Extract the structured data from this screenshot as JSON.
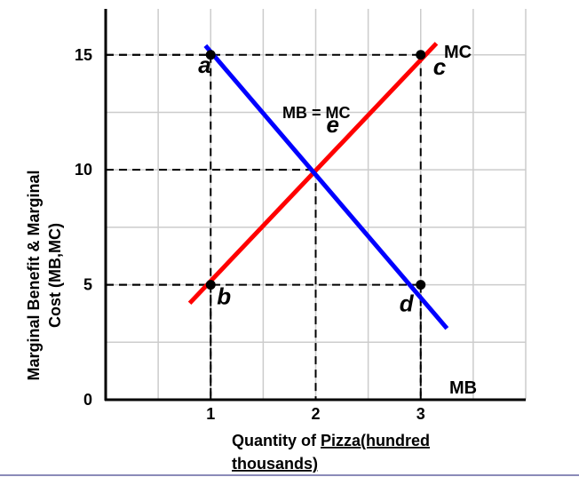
{
  "chart_data": {
    "type": "line",
    "title": "",
    "xlabel_line1_prefix": "Quantity of ",
    "xlabel_line1_underlined": "Pizza(hundred",
    "xlabel_line2": "thousands)",
    "ylabel_line1": "Marginal Benefit & Marginal",
    "ylabel_line2": "Cost (MB,MC)",
    "xlim": [
      0,
      4
    ],
    "ylim": [
      0,
      17
    ],
    "grid": true,
    "x_ticks": [
      {
        "value": 1,
        "label": "1"
      },
      {
        "value": 2,
        "label": "2"
      },
      {
        "value": 3,
        "label": "3"
      }
    ],
    "y_ticks": [
      {
        "value": 0,
        "label": "0"
      },
      {
        "value": 5,
        "label": "5"
      },
      {
        "value": 10,
        "label": "10"
      },
      {
        "value": 15,
        "label": "15"
      }
    ],
    "series": [
      {
        "name": "MC",
        "color": "#ff0000",
        "x": [
          0.8,
          3.15
        ],
        "y": [
          4.2,
          15.5
        ]
      },
      {
        "name": "MB",
        "color": "#0000ff",
        "x": [
          0.95,
          3.25
        ],
        "y": [
          15.4,
          3.1
        ]
      }
    ],
    "points": [
      {
        "label": "a",
        "x": 1,
        "y": 15
      },
      {
        "label": "b",
        "x": 1,
        "y": 5
      },
      {
        "label": "c",
        "x": 3,
        "y": 15
      },
      {
        "label": "d",
        "x": 3,
        "y": 5
      },
      {
        "label": "e",
        "x": 2,
        "y": 10
      }
    ],
    "annotations": [
      {
        "text": "MB = MC"
      }
    ]
  }
}
